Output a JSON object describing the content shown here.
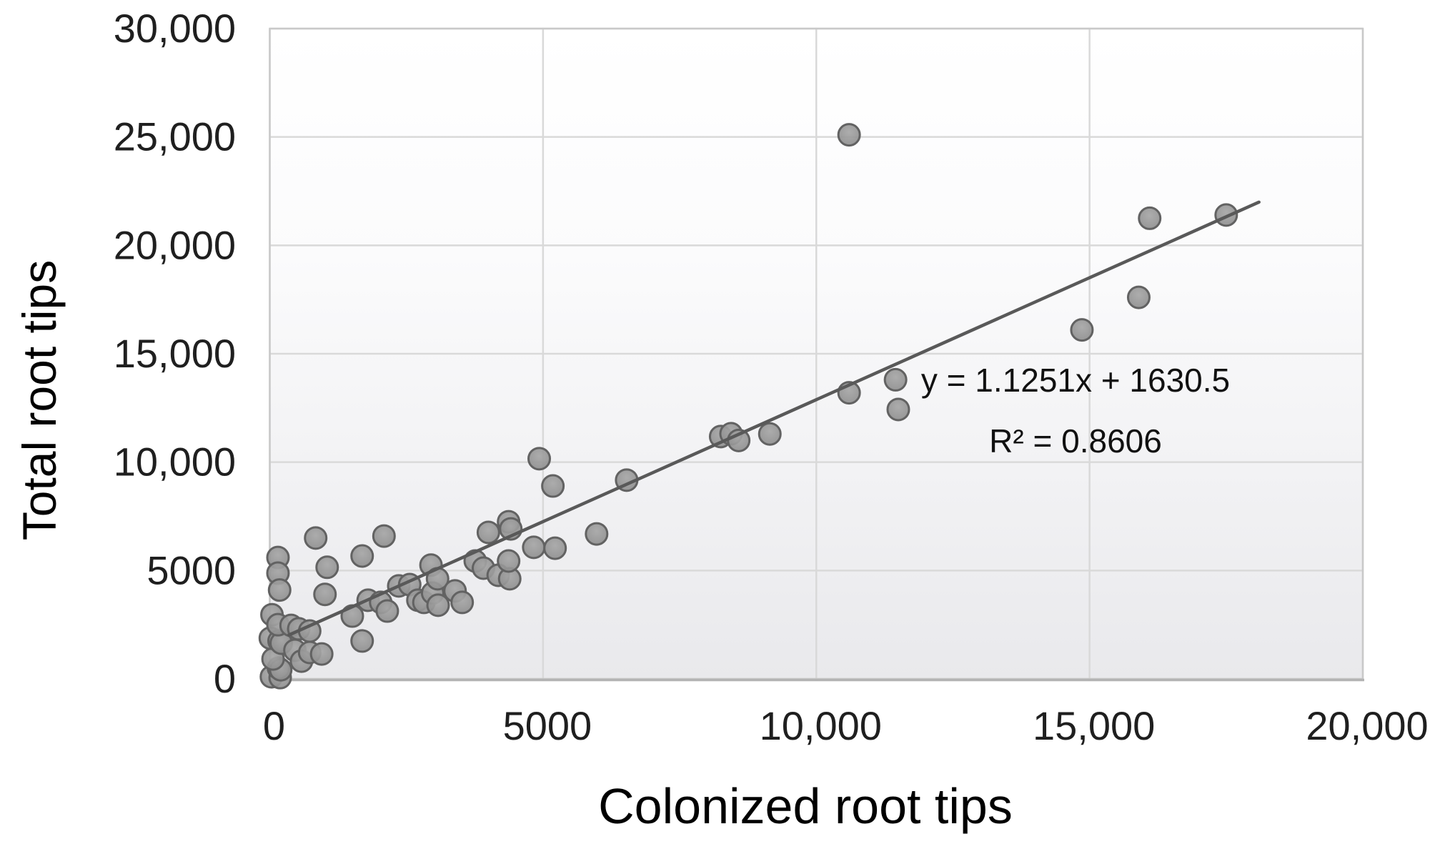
{
  "chart_data": {
    "type": "scatter",
    "title": "",
    "xlabel": "Colonized root tips",
    "ylabel": "Total root tips",
    "xlim": [
      0,
      20000
    ],
    "ylim": [
      0,
      30000
    ],
    "grid": true,
    "legend": "none",
    "x_ticks": [
      0,
      5000,
      10000,
      15000,
      20000
    ],
    "x_tick_labels": [
      "0",
      "5000",
      "10,000",
      "15,000",
      "20,000"
    ],
    "y_ticks": [
      0,
      5000,
      10000,
      15000,
      20000,
      25000,
      30000
    ],
    "y_tick_labels": [
      "0",
      "5000",
      "10,000",
      "15,000",
      "20,000",
      "25,000",
      "30,000"
    ],
    "points": [
      [
        30,
        100
      ],
      [
        190,
        60
      ],
      [
        160,
        500
      ],
      [
        200,
        420
      ],
      [
        60,
        920
      ],
      [
        10,
        1880
      ],
      [
        170,
        1750
      ],
      [
        210,
        1650
      ],
      [
        40,
        2960
      ],
      [
        150,
        2500
      ],
      [
        390,
        2470
      ],
      [
        150,
        5600
      ],
      [
        150,
        4880
      ],
      [
        180,
        4100
      ],
      [
        460,
        1320
      ],
      [
        530,
        2310
      ],
      [
        580,
        820
      ],
      [
        730,
        2210
      ],
      [
        730,
        1220
      ],
      [
        950,
        1150
      ],
      [
        840,
        6500
      ],
      [
        1010,
        3900
      ],
      [
        1050,
        5150
      ],
      [
        1510,
        2900
      ],
      [
        1690,
        1750
      ],
      [
        1690,
        5670
      ],
      [
        1800,
        3630
      ],
      [
        2030,
        3530
      ],
      [
        2090,
        6590
      ],
      [
        2150,
        3130
      ],
      [
        2360,
        4290
      ],
      [
        2560,
        4350
      ],
      [
        2710,
        3630
      ],
      [
        2820,
        3530
      ],
      [
        2950,
        5250
      ],
      [
        2980,
        3960
      ],
      [
        3070,
        4620
      ],
      [
        3080,
        3400
      ],
      [
        3390,
        4060
      ],
      [
        3520,
        3530
      ],
      [
        3760,
        5440
      ],
      [
        3910,
        5110
      ],
      [
        4000,
        6760
      ],
      [
        4180,
        4780
      ],
      [
        4370,
        7250
      ],
      [
        4390,
        4620
      ],
      [
        4410,
        6920
      ],
      [
        4370,
        5440
      ],
      [
        4830,
        6070
      ],
      [
        4930,
        10160
      ],
      [
        5180,
        8900
      ],
      [
        5220,
        6030
      ],
      [
        5980,
        6690
      ],
      [
        6530,
        9170
      ],
      [
        8250,
        11180
      ],
      [
        8440,
        11310
      ],
      [
        8580,
        11000
      ],
      [
        9150,
        11300
      ],
      [
        10600,
        13200
      ],
      [
        10600,
        25100
      ],
      [
        11450,
        13800
      ],
      [
        11500,
        12430
      ],
      [
        14860,
        16100
      ],
      [
        15900,
        17600
      ],
      [
        16100,
        21250
      ],
      [
        17500,
        21400
      ]
    ],
    "trendline": {
      "slope": 1.1251,
      "intercept": 1630.5,
      "x_start": 350,
      "x_end": 18100,
      "equation": "y = 1.1251x + 1630.5",
      "r_squared": "R² = 0.8606"
    },
    "colors": {
      "point_fill": "#989898",
      "point_stroke": "#626262",
      "trendline": "#595959",
      "gridline": "#d9d9d9",
      "plot_border": "#c9c9c9",
      "axis_line": "#b3b3b3",
      "text": "#1f1f1f"
    }
  }
}
